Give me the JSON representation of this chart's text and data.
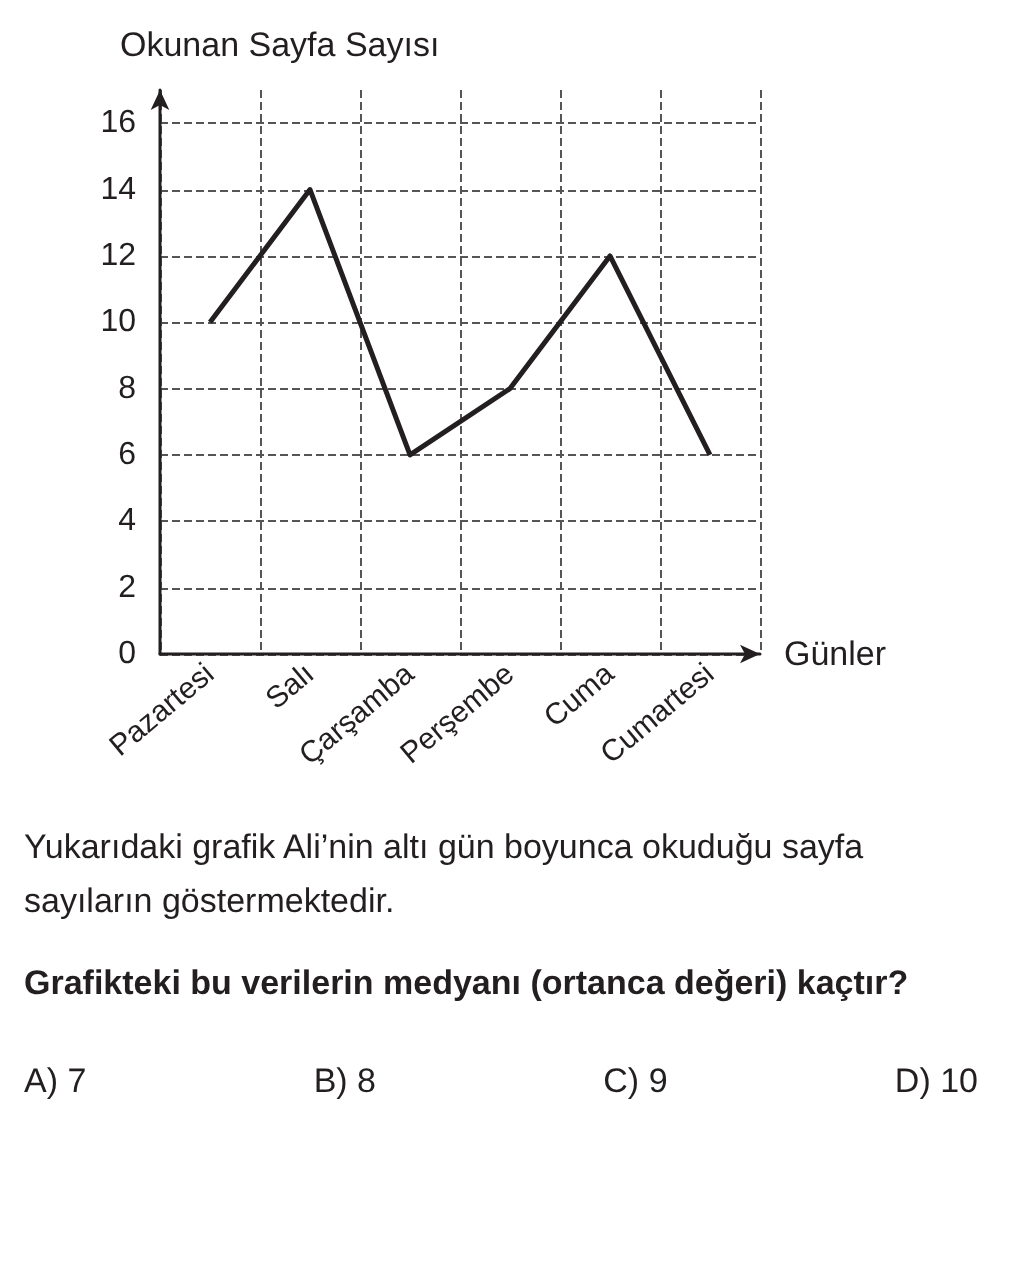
{
  "chart_data": {
    "type": "line",
    "ylabel": "Okunan Sayfa Sayısı",
    "xlabel": "Günler",
    "categories": [
      "Pazartesi",
      "Salı",
      "Çarşamba",
      "Perşembe",
      "Cuma",
      "Cumartesi"
    ],
    "values": [
      10,
      14,
      6,
      8,
      12,
      6
    ],
    "color": "#231f20",
    "ylim": [
      0,
      17
    ],
    "yticks": [
      0,
      2,
      4,
      6,
      8,
      10,
      12,
      14,
      16
    ],
    "grid": true,
    "marker": "none",
    "line_style": "solid",
    "annotations": [
      "Yukarıdaki grafik Ali’nin altı gün boyunca okuduğu sayfa sayıların göstermektedir.",
      "Grafikteki bu verilerin medyanı (ortanca değeri) kaçtır?",
      "A) 7",
      "B) 8",
      "C) 9",
      "D) 10"
    ]
  }
}
